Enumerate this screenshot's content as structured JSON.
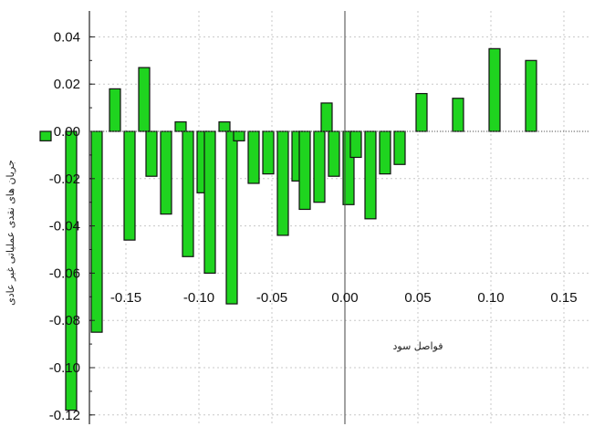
{
  "chart_data": {
    "type": "bar",
    "title": "",
    "xlabel": "فواصل سود",
    "ylabel": "جریان های نقدی عملیاتی غیر عادی",
    "ylim": [
      -0.125,
      0.047
    ],
    "xlim": [
      -0.205,
      0.185
    ],
    "grid": true,
    "legend": "none",
    "bar_color": "#1fd41f",
    "bar_edge_color": "#111111",
    "y_ticks": [
      "0.04",
      "0.02",
      "0.00",
      "-0.02",
      "-0.04",
      "-0.06",
      "-0.08",
      "-0.10",
      "-0.12"
    ],
    "x_ticks": [
      "-0.15",
      "-0.10",
      "-0.05",
      "0.00",
      "0.05",
      "0.10",
      "0.15"
    ],
    "x": [
      -0.205,
      -0.1875,
      -0.17,
      -0.1575,
      -0.1475,
      -0.1375,
      -0.1325,
      -0.1225,
      -0.1125,
      -0.1075,
      -0.0975,
      -0.0925,
      -0.0825,
      -0.0775,
      -0.0725,
      -0.0625,
      -0.0525,
      -0.0425,
      -0.0325,
      -0.0275,
      -0.0175,
      -0.0125,
      -0.0075,
      0.0025,
      0.0075,
      0.0175,
      0.0275,
      0.0375,
      0.0525,
      0.0775,
      0.1025,
      0.1275,
      0.1525,
      0.1775
    ],
    "values": [
      -0.004,
      -0.118,
      -0.085,
      0.018,
      -0.046,
      0.027,
      -0.019,
      -0.035,
      0.004,
      -0.053,
      -0.026,
      -0.06,
      0.004,
      -0.073,
      -0.004,
      -0.022,
      -0.018,
      -0.044,
      -0.021,
      -0.033,
      -0.03,
      0.012,
      -0.019,
      -0.031,
      -0.011,
      -0.037,
      -0.018,
      -0.014,
      0.016,
      0.014,
      0.035,
      0.03,
      0.0,
      0.0
    ]
  }
}
